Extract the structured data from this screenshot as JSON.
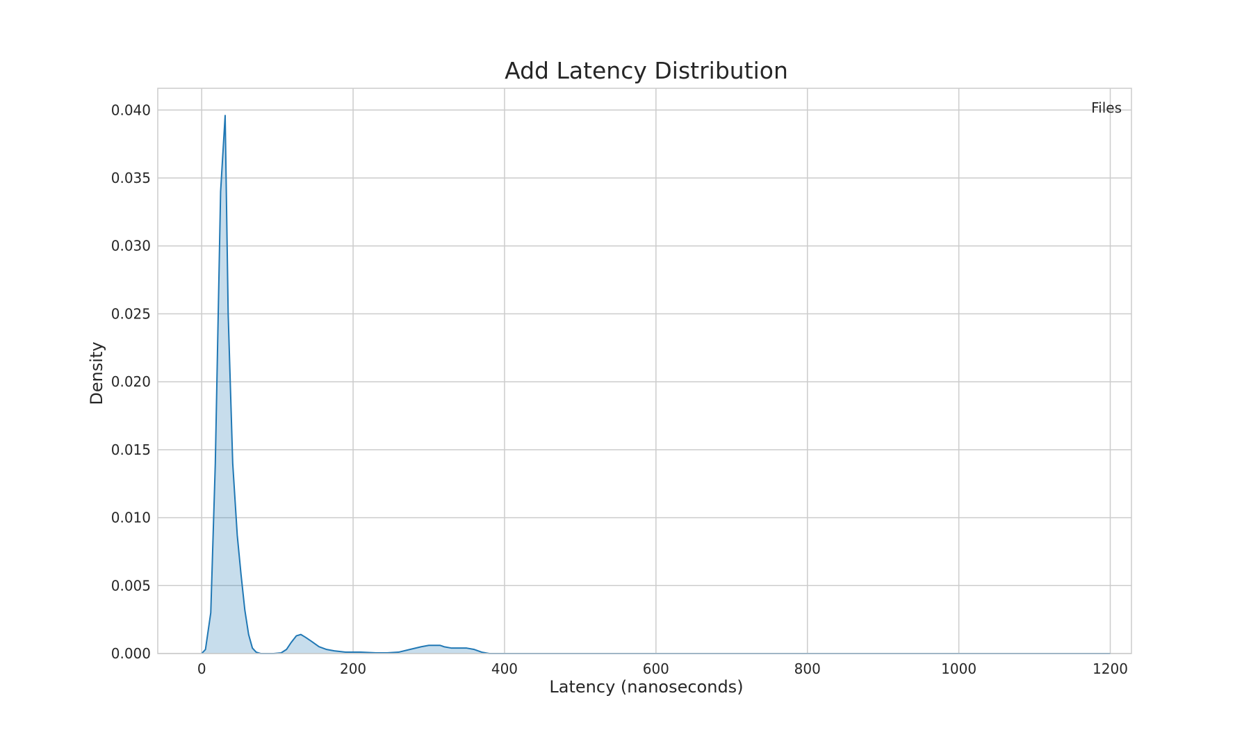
{
  "chart_data": {
    "type": "area",
    "title": "Add Latency Distribution",
    "xlabel": "Latency (nanoseconds)",
    "ylabel": "Density",
    "xlim": [
      -58,
      1228
    ],
    "ylim": [
      0,
      0.0416
    ],
    "x_ticks": [
      0,
      200,
      400,
      600,
      800,
      1000,
      1200
    ],
    "y_ticks": [
      0.0,
      0.005,
      0.01,
      0.015,
      0.02,
      0.025,
      0.03,
      0.035,
      0.04
    ],
    "y_tick_decimals": 3,
    "grid": true,
    "legend": {
      "position": "top-right",
      "title": "Files",
      "entries": []
    },
    "series": [
      {
        "x": [
          0,
          5,
          12,
          18,
          25,
          31,
          35,
          41,
          47,
          52,
          57,
          62,
          67,
          72,
          78,
          85,
          95,
          105,
          112,
          118,
          125,
          131,
          137,
          145,
          155,
          165,
          175,
          190,
          210,
          230,
          245,
          260,
          275,
          290,
          300,
          308,
          315,
          320,
          330,
          340,
          350,
          360,
          370,
          380,
          400,
          450,
          500,
          600,
          800,
          1000,
          1200
        ],
        "y": [
          0.0,
          0.0003,
          0.003,
          0.014,
          0.034,
          0.0396,
          0.025,
          0.014,
          0.0087,
          0.0058,
          0.0032,
          0.0014,
          0.0004,
          0.0001,
          0.0,
          0.0,
          0.0,
          5e-05,
          0.0003,
          0.0008,
          0.0013,
          0.0014,
          0.0012,
          0.0009,
          0.0005,
          0.0003,
          0.0002,
          0.0001,
          0.0001,
          5e-05,
          5e-05,
          0.0001,
          0.0003,
          0.0005,
          0.0006,
          0.0006,
          0.0006,
          0.0005,
          0.0004,
          0.0004,
          0.0004,
          0.0003,
          0.0001,
          0.0,
          0.0,
          0.0,
          0.0,
          0.0,
          0.0,
          0.0,
          0.0
        ]
      }
    ]
  },
  "colors": {
    "line": "#1f77b4",
    "fill": "#1f77b4",
    "fill_opacity": 0.25,
    "grid": "#cccccc",
    "frame": "#cccccc",
    "text": "#262626"
  }
}
